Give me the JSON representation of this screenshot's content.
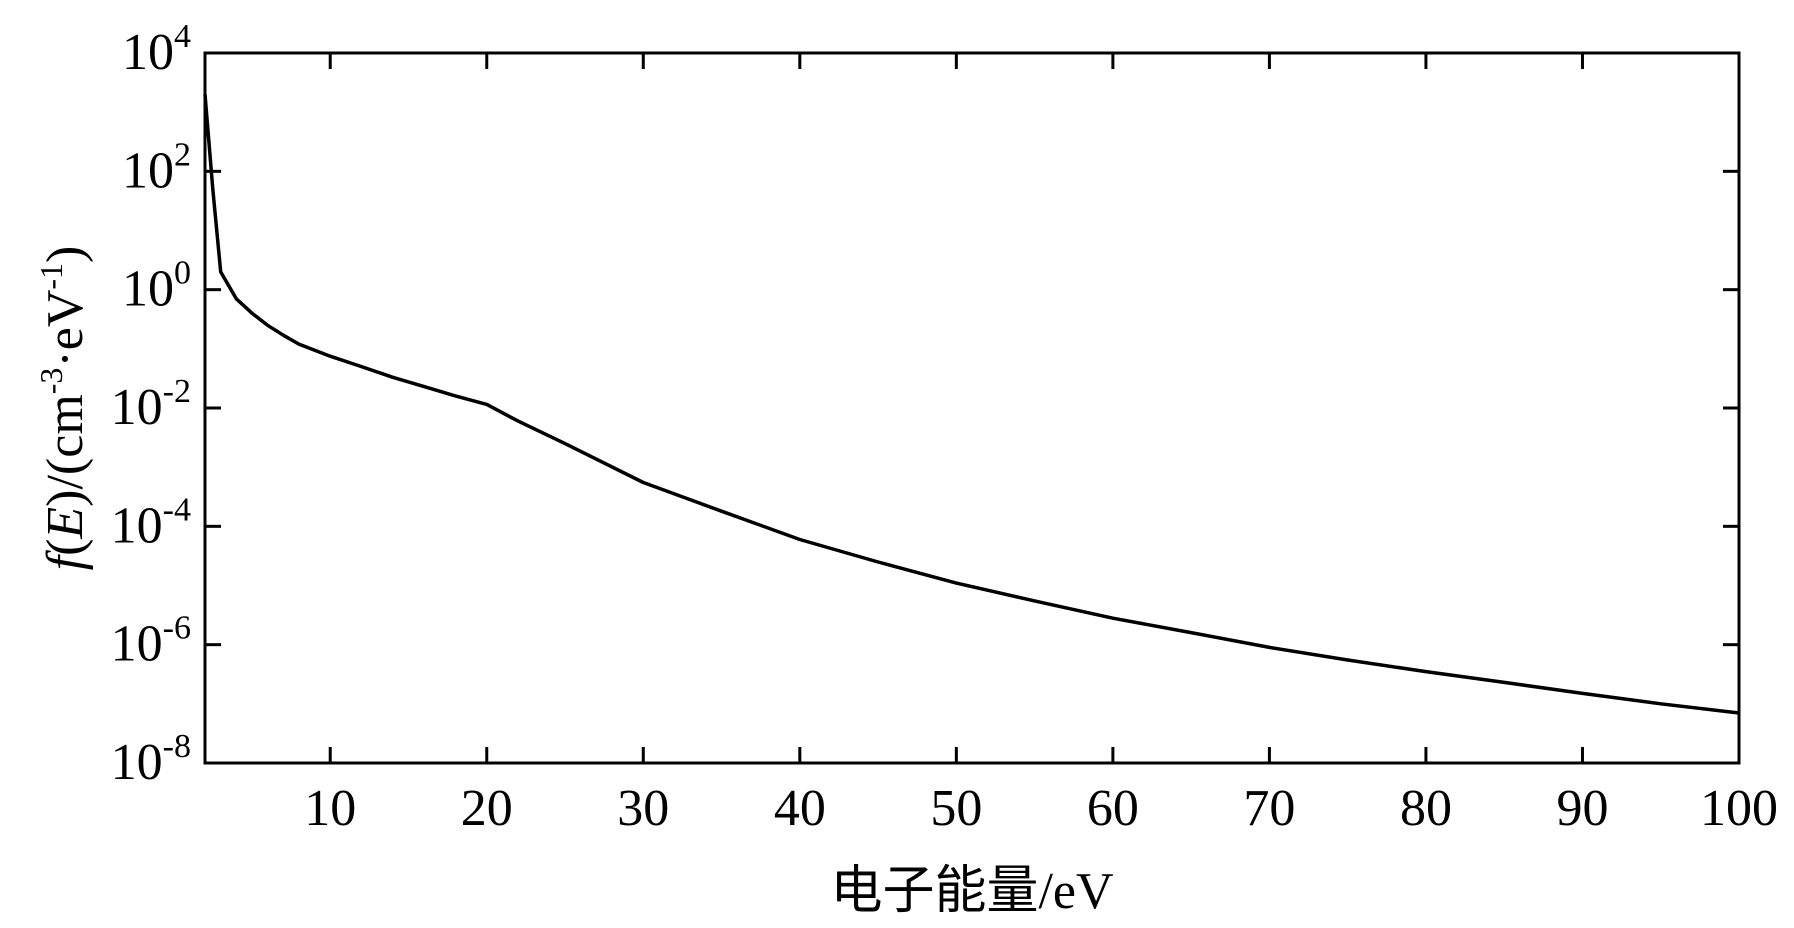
{
  "chart_data": {
    "type": "line",
    "title": "",
    "xlabel": "电子能量/eV",
    "ylabel": {
      "f": "f",
      "paren_open": "(",
      "E": "E",
      "mid": ")/(cm",
      "sup1": "-3",
      "dot_ev": "·eV",
      "sup2": "-1",
      "close": ")"
    },
    "xlim": [
      2,
      100
    ],
    "ylim": [
      1e-08,
      10000
    ],
    "y_scale": "log",
    "grid": false,
    "legend": "none",
    "x_ticks": [
      10,
      20,
      30,
      40,
      50,
      60,
      70,
      80,
      90,
      100
    ],
    "x_tick_labels": [
      "10",
      "20",
      "30",
      "40",
      "50",
      "60",
      "70",
      "80",
      "90",
      "100"
    ],
    "y_ticks": [
      {
        "value": 10000,
        "base": "10",
        "exp": "4"
      },
      {
        "value": 100,
        "base": "10",
        "exp": "2"
      },
      {
        "value": 1,
        "base": "10",
        "exp": "0"
      },
      {
        "value": 0.01,
        "base": "10",
        "exp": "-2"
      },
      {
        "value": 0.0001,
        "base": "10",
        "exp": "-4"
      },
      {
        "value": 1e-06,
        "base": "10",
        "exp": "-6"
      },
      {
        "value": 1e-08,
        "base": "10",
        "exp": "-8"
      }
    ],
    "series": [
      {
        "color": "#000000",
        "x": [
          2,
          2.5,
          3,
          4,
          5,
          6,
          7,
          8,
          10,
          12,
          14,
          16,
          18,
          20,
          22,
          25,
          30,
          35,
          40,
          45,
          50,
          55,
          60,
          65,
          70,
          75,
          80,
          85,
          90,
          95,
          100
        ],
        "y": [
          2000,
          50,
          2,
          0.7,
          0.4,
          0.25,
          0.17,
          0.12,
          0.075,
          0.05,
          0.033,
          0.023,
          0.016,
          0.0115,
          0.006,
          0.0025,
          0.00055,
          0.00018,
          6e-05,
          2.5e-05,
          1.1e-05,
          5.5e-06,
          2.8e-06,
          1.6e-06,
          9e-07,
          5.5e-07,
          3.5e-07,
          2.3e-07,
          1.5e-07,
          1e-07,
          7e-08
        ]
      }
    ]
  }
}
